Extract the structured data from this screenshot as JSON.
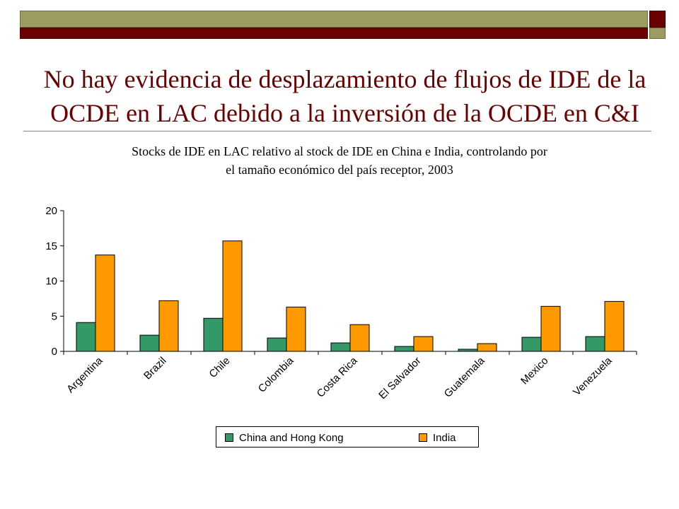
{
  "slide": {
    "title_line1": "No hay evidencia de desplazamiento de flujos de IDE de la",
    "title_line2": "OCDE en LAC debido a la inversión de la OCDE en C&I",
    "subtitle_line1": "Stocks de IDE en LAC relativo al stock de IDE en China e India, controlando por",
    "subtitle_line2": "el tamaño económico del país receptor, 2003",
    "colors": {
      "olive": "#9c9b60",
      "dark_red": "#6b0000"
    }
  },
  "chart_data": {
    "type": "bar",
    "title": "",
    "xlabel": "",
    "ylabel": "",
    "ylim": [
      0,
      20
    ],
    "yticks": [
      "0",
      "5",
      "10",
      "15",
      "20"
    ],
    "grid": false,
    "legend_position": "bottom",
    "categories": [
      "Argentina",
      "Brazil",
      "Chile",
      "Colombia",
      "Costa Rica",
      "El Salvador",
      "Guatemala",
      "Mexico",
      "Venezuela"
    ],
    "series": [
      {
        "name": "China and Hong Kong",
        "color": "#339966",
        "values": [
          4.1,
          2.3,
          4.7,
          1.9,
          1.2,
          0.7,
          0.3,
          2.0,
          2.1
        ]
      },
      {
        "name": "India",
        "color": "#ff9900",
        "values": [
          13.7,
          7.2,
          15.7,
          6.3,
          3.8,
          2.1,
          1.1,
          6.4,
          7.1
        ]
      }
    ]
  }
}
